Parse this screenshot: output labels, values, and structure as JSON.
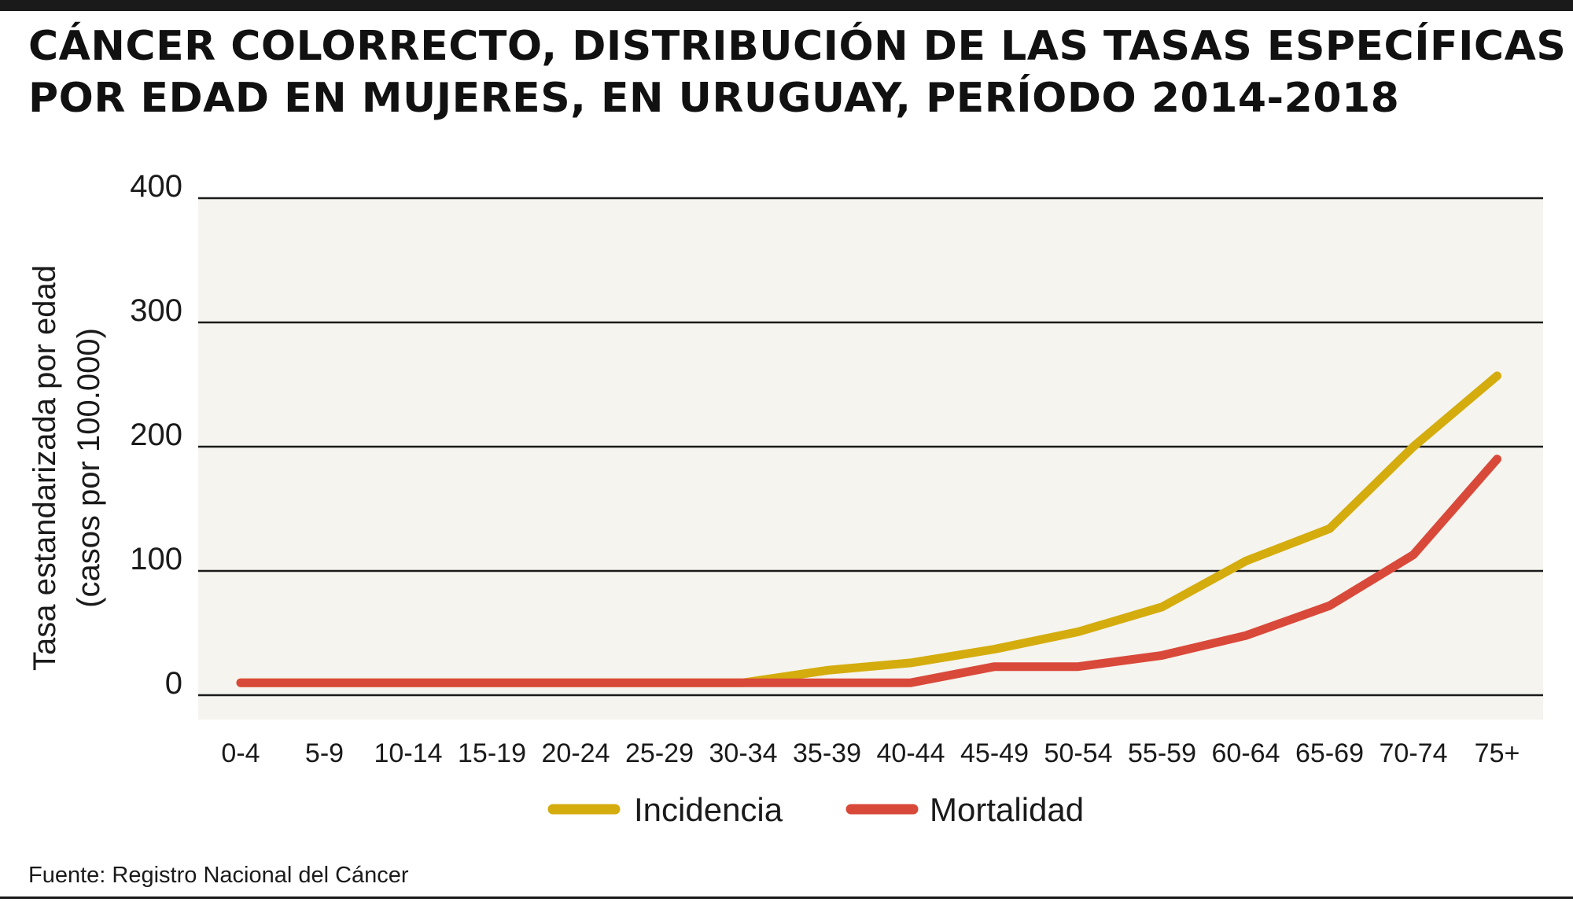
{
  "title": {
    "line1": "CÁNCER COLORRECTO, DISTRIBUCIÓN DE LAS TASAS ESPECÍFICAS",
    "line2": "POR EDAD EN MUJERES, EN URUGUAY, PERÍODO 2014-2018"
  },
  "source": "Fuente: Registro Nacional del Cáncer",
  "colors": {
    "plot_background": "#f5f4ee",
    "gridline": "#1a1a1a",
    "incidencia": "#d4ac0d",
    "mortalidad": "#d9493a"
  },
  "chart_data": {
    "type": "line",
    "title": "CÁNCER COLORRECTO, DISTRIBUCIÓN DE LAS TASAS ESPECÍFICAS POR EDAD EN MUJERES, EN URUGUAY, PERÍODO 2014-2018",
    "ylabel_line1": "Tasa estandarizada por edad",
    "ylabel_line2": "(casos por 100.000)",
    "xlabel": "",
    "ylim": [
      0,
      400
    ],
    "yticks": [
      0,
      100,
      200,
      300,
      400
    ],
    "grid": "horizontal",
    "legend_position": "bottom-center",
    "categories": [
      "0-4",
      "5-9",
      "10-14",
      "15-19",
      "20-24",
      "25-29",
      "30-34",
      "35-39",
      "40-44",
      "45-49",
      "50-54",
      "55-59",
      "60-64",
      "65-69",
      "70-74",
      "75+"
    ],
    "series": [
      {
        "name": "Incidencia",
        "color": "#d4ac0d",
        "values": [
          10,
          10,
          10,
          10,
          10,
          10,
          10,
          20,
          26,
          37,
          51,
          71,
          108,
          134,
          200,
          257
        ]
      },
      {
        "name": "Mortalidad",
        "color": "#d9493a",
        "values": [
          10,
          10,
          10,
          10,
          10,
          10,
          10,
          10,
          10,
          23,
          23,
          32,
          48,
          72,
          113,
          190
        ]
      }
    ]
  }
}
